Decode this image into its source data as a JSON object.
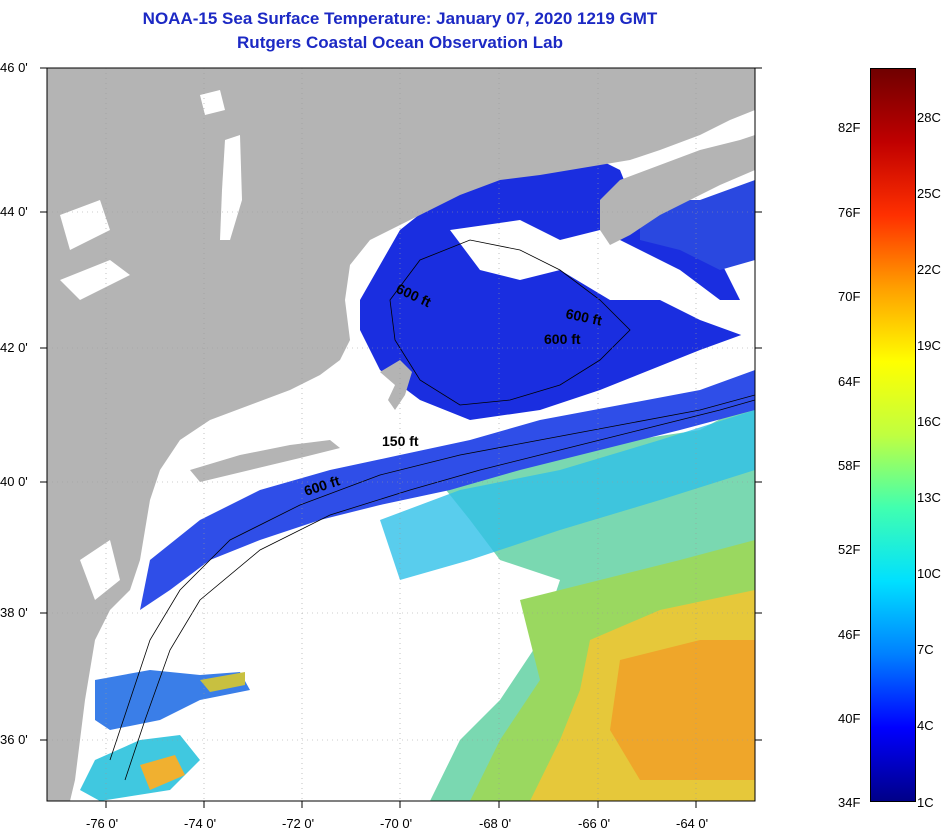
{
  "title_line1": "NOAA-15 Sea Surface Temperature:  January 07, 2020 1219 GMT",
  "title_line2": "Rutgers Coastal Ocean Observation Lab",
  "colors": {
    "land": "#b4b4b4",
    "cloud": "#ffffff",
    "title": "#1c29c4",
    "cold": "#1010d8",
    "deep_blue": "#2a52e6",
    "cyan": "#22c8e6",
    "green": "#7adc6a",
    "yellow": "#f0e030",
    "orange": "#f0a020"
  },
  "latitude_labels": [
    "46 0'",
    "44 0'",
    "42 0'",
    "40 0'",
    "38 0'",
    "36 0'"
  ],
  "longitude_labels": [
    "-76 0'",
    "-74 0'",
    "-72 0'",
    "-70 0'",
    "-68 0'",
    "-66 0'",
    "-64 0'"
  ],
  "contour_labels": [
    "600 ft",
    "600 ft",
    "600 ft",
    "150 ft",
    "600 ft"
  ],
  "colorbar": {
    "fahrenheit_labels": [
      "82F",
      "76F",
      "70F",
      "64F",
      "58F",
      "52F",
      "46F",
      "40F",
      "34F"
    ],
    "celsius_labels": [
      "28C",
      "25C",
      "22C",
      "19C",
      "16C",
      "13C",
      "10C",
      "7C",
      "4C",
      "1C"
    ],
    "stops": [
      "#000088",
      "#0000ff",
      "#0080ff",
      "#00e0ff",
      "#40ffb0",
      "#c0ff40",
      "#ffff00",
      "#ffa000",
      "#ff3000",
      "#c00000",
      "#700000"
    ]
  }
}
